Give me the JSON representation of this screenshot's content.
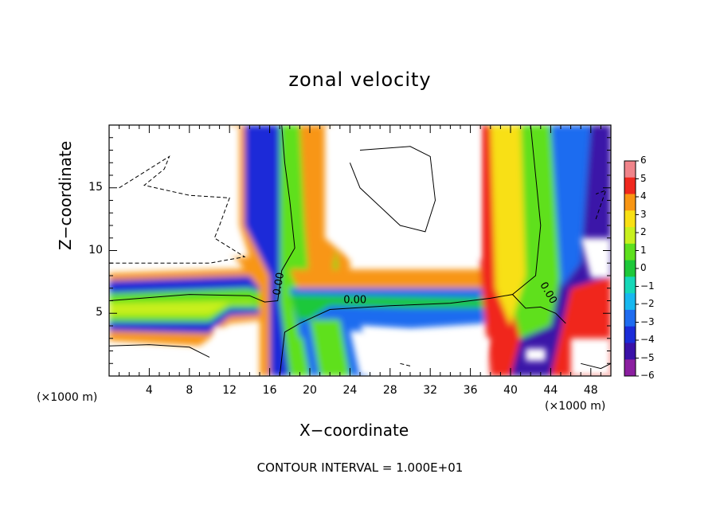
{
  "figure": {
    "title": "zonal velocity",
    "contour_note": "CONTOUR INTERVAL = 1.000E+01",
    "x_unit_left": "(×1000 m)",
    "x_unit_right": "(×1000 m)"
  },
  "chart_data": {
    "type": "heatmap",
    "title": "zonal velocity",
    "xlabel": "X−coordinate",
    "ylabel": "Z−coordinate",
    "xlim": [
      0,
      50
    ],
    "ylim": [
      0,
      20
    ],
    "xticks": [
      4,
      8,
      12,
      16,
      20,
      24,
      28,
      32,
      36,
      40,
      44,
      48
    ],
    "yticks": [
      5,
      10,
      15
    ],
    "colorbar": {
      "ticks": [
        6,
        5,
        4,
        3,
        2,
        1,
        0,
        -1,
        -2,
        -3,
        -4,
        -5,
        -6
      ],
      "tick_labels": [
        "6",
        "5",
        "4",
        "3",
        "2",
        "1",
        "0",
        "−1",
        "−2",
        "−3",
        "−4",
        "−5",
        "−6"
      ],
      "range": [
        -6,
        6
      ],
      "colors": [
        "#8b1fa0",
        "#3a12a8",
        "#1b2cd8",
        "#1f6cf0",
        "#18b8f0",
        "#16d8b8",
        "#1ec83a",
        "#5ee01e",
        "#c8f01e",
        "#f8e014",
        "#f89614",
        "#f0281e",
        "#f0848a"
      ]
    },
    "contour_labels": [
      {
        "text": "0.00",
        "x": 17.2,
        "z": 7.3,
        "rotate": -80
      },
      {
        "text": "0.00",
        "x": 24.5,
        "z": 5.8,
        "rotate": 0
      },
      {
        "text": "0.00",
        "x": 43.5,
        "z": 6.5,
        "rotate": 60
      }
    ],
    "contour_interval": 10
  }
}
